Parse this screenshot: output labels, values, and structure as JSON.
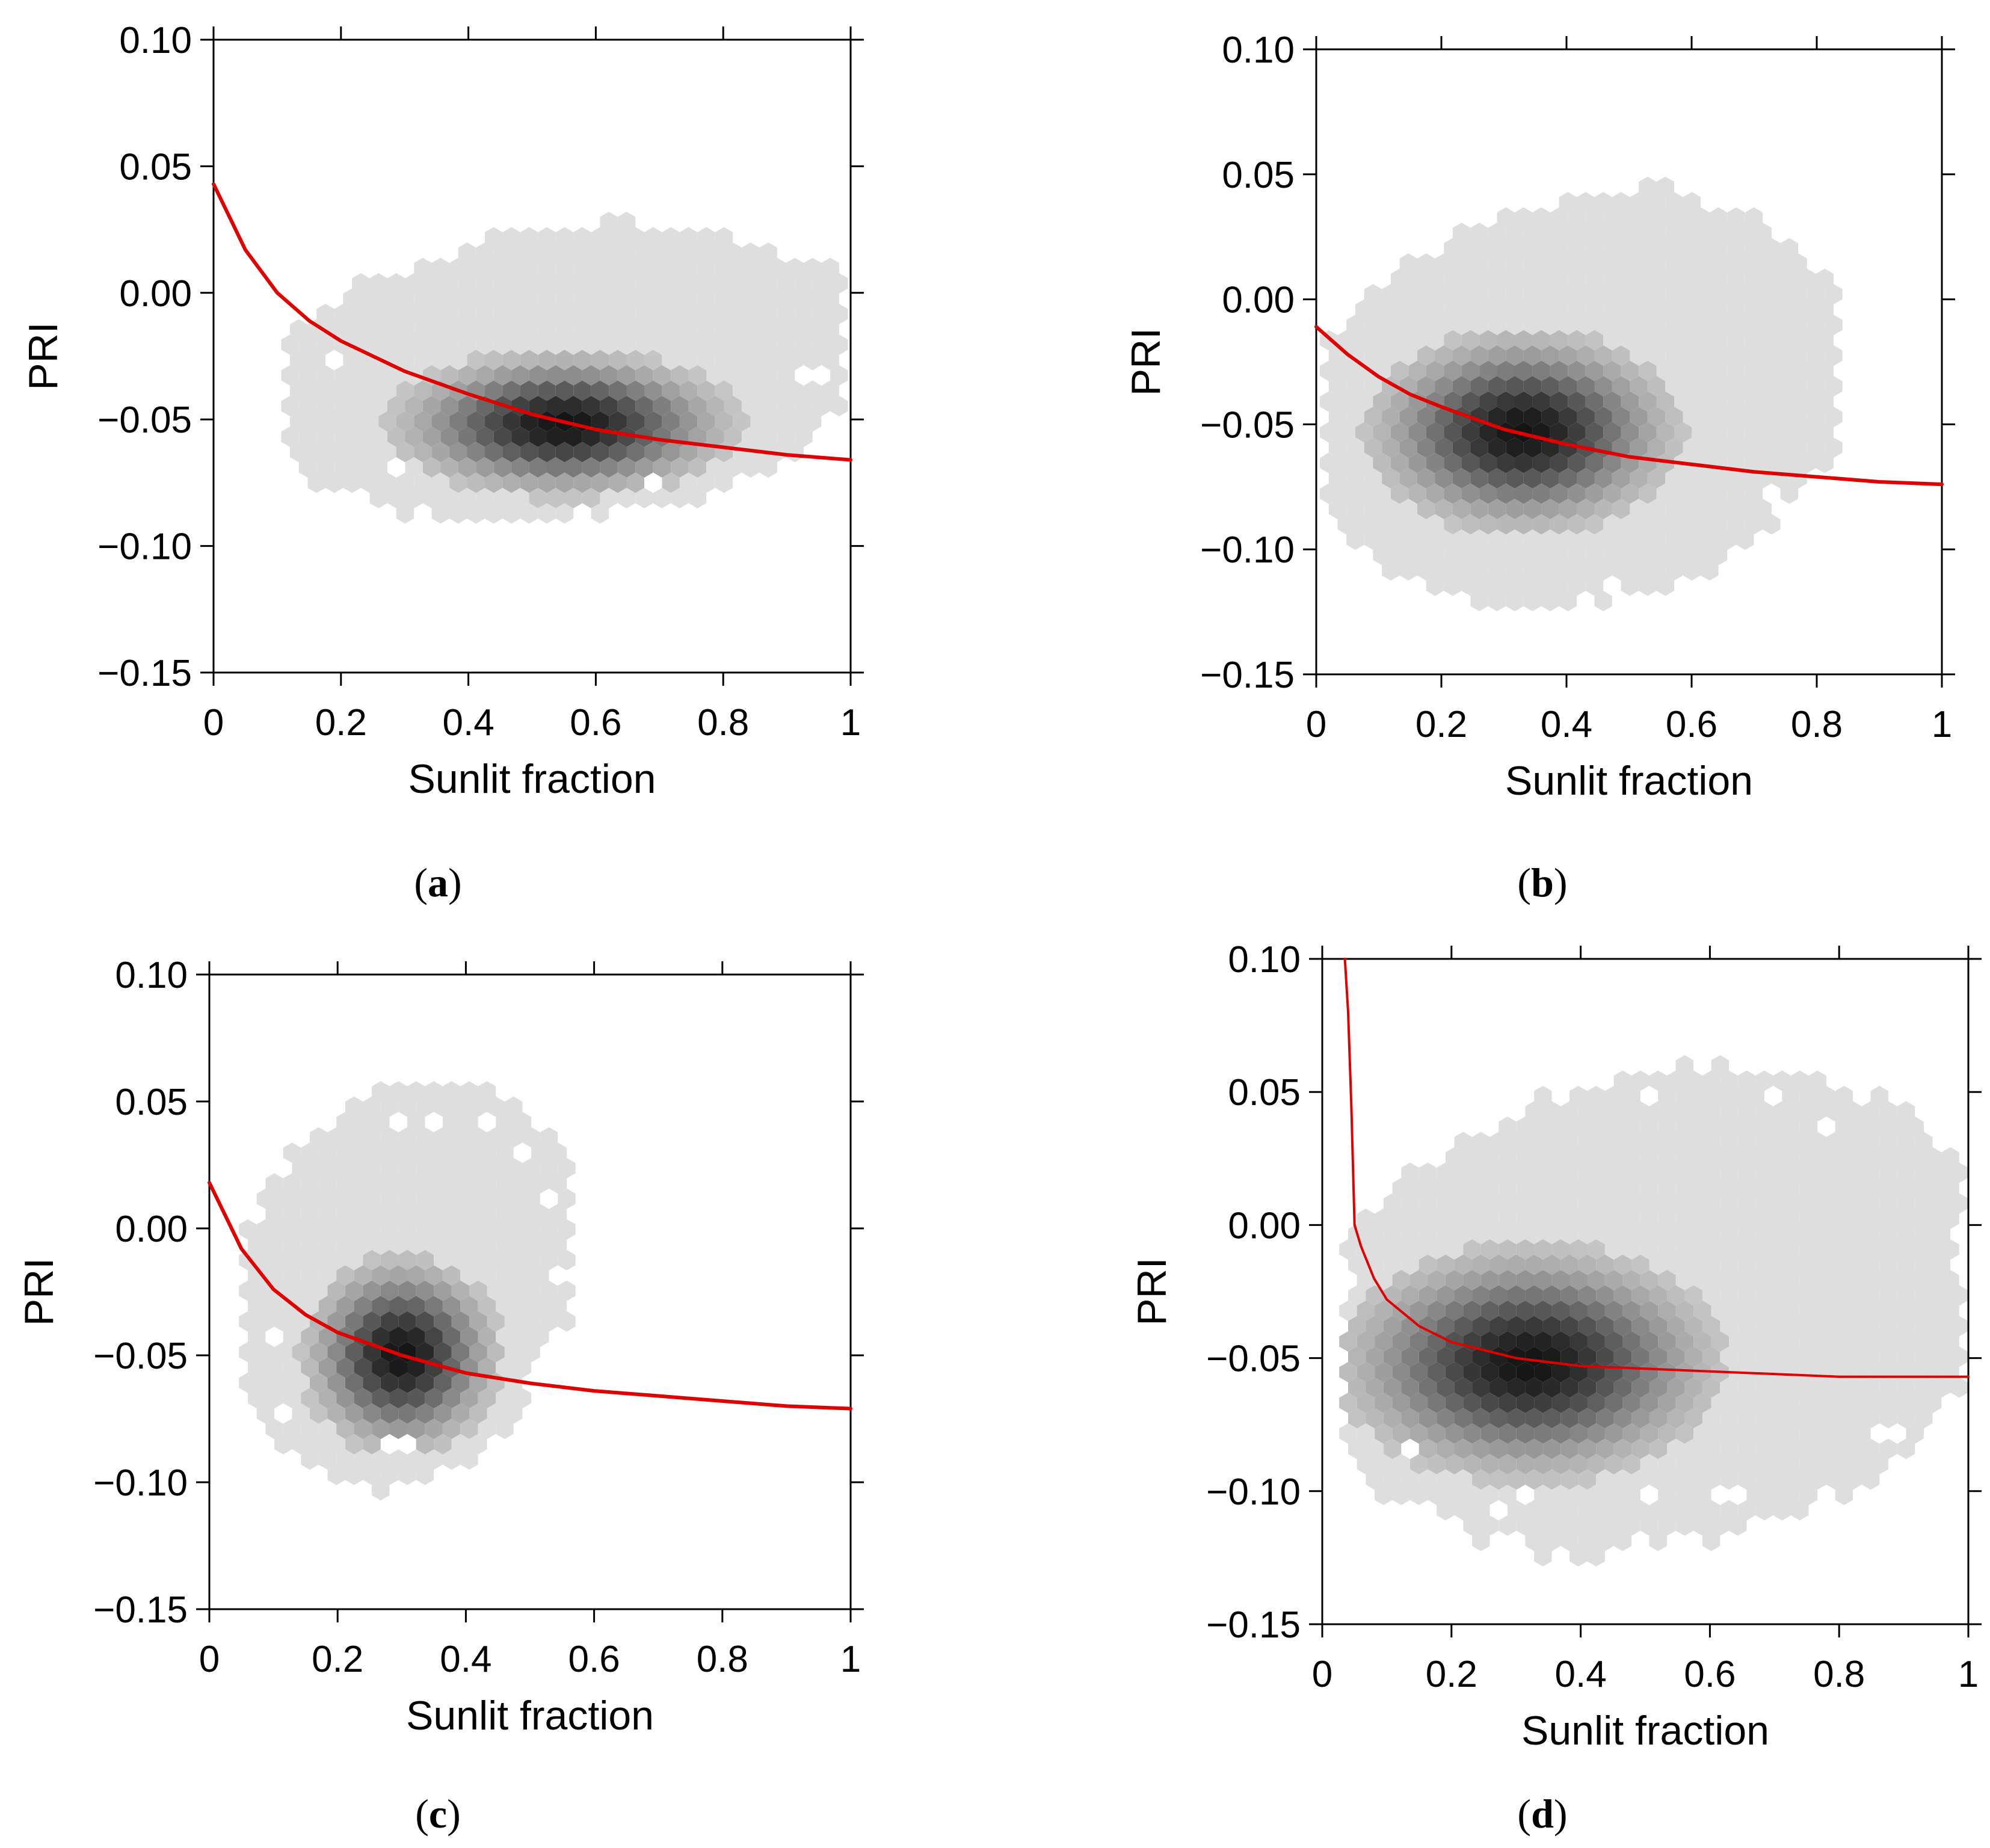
{
  "colors": {
    "fit_line": "#e00000",
    "axis": "#000000",
    "density_low": "#dcdcdc",
    "density_high": "#141414"
  },
  "chart_data": [
    {
      "panel": "a",
      "type": "hexbin-scatter",
      "caption": {
        "open": "(",
        "letter": "a",
        "close": ")"
      },
      "xlabel": "Sunlit fraction",
      "ylabel": "PRI",
      "xlim": [
        0,
        1
      ],
      "ylim": [
        -0.15,
        0.1
      ],
      "xticks": [
        "0",
        "0.2",
        "0.4",
        "0.6",
        "0.8",
        "1"
      ],
      "yticks": [
        "0.10",
        "0.05",
        "0.00",
        "−0.05",
        "−0.10",
        "−0.15"
      ],
      "density": {
        "x_range": [
          0.12,
          1.0
        ],
        "y_range": [
          -0.092,
          0.028
        ],
        "peak": {
          "x": 0.55,
          "y": -0.052
        }
      },
      "fit": {
        "x": [
          0,
          0.05,
          0.1,
          0.15,
          0.2,
          0.3,
          0.4,
          0.5,
          0.6,
          0.7,
          0.8,
          0.9,
          1.0
        ],
        "y": [
          0.043,
          0.017,
          0.0,
          -0.011,
          -0.019,
          -0.031,
          -0.04,
          -0.048,
          -0.054,
          -0.058,
          -0.061,
          -0.064,
          -0.066
        ]
      }
    },
    {
      "panel": "b",
      "type": "hexbin-scatter",
      "caption": {
        "open": "(",
        "letter": "b",
        "close": ")"
      },
      "xlabel": "Sunlit fraction",
      "ylabel": "PRI",
      "xlim": [
        0,
        1
      ],
      "ylim": [
        -0.15,
        0.1
      ],
      "xticks": [
        "0",
        "0.2",
        "0.4",
        "0.6",
        "0.8",
        "1"
      ],
      "yticks": [
        "0.10",
        "0.05",
        "0.00",
        "−0.05",
        "−0.10",
        "−0.15"
      ],
      "density": {
        "x_range": [
          0.02,
          0.83
        ],
        "y_range": [
          -0.125,
          0.045
        ],
        "peak": {
          "x": 0.33,
          "y": -0.053
        }
      },
      "fit": {
        "x": [
          0,
          0.05,
          0.1,
          0.15,
          0.2,
          0.3,
          0.4,
          0.5,
          0.6,
          0.7,
          0.8,
          0.9,
          1.0
        ],
        "y": [
          -0.011,
          -0.022,
          -0.031,
          -0.038,
          -0.043,
          -0.052,
          -0.058,
          -0.063,
          -0.066,
          -0.069,
          -0.071,
          -0.073,
          -0.074
        ]
      }
    },
    {
      "panel": "c",
      "type": "hexbin-scatter",
      "caption": {
        "open": "(",
        "letter": "c",
        "close": ")"
      },
      "xlabel": "Sunlit fraction",
      "ylabel": "PRI",
      "xlim": [
        0,
        1
      ],
      "ylim": [
        -0.15,
        0.1
      ],
      "xticks": [
        "0",
        "0.2",
        "0.4",
        "0.6",
        "0.8",
        "1"
      ],
      "yticks": [
        "0.10",
        "0.05",
        "0.00",
        "−0.05",
        "−0.10",
        "−0.15"
      ],
      "density": {
        "x_range": [
          0.06,
          0.56
        ],
        "y_range": [
          -0.104,
          0.06
        ],
        "peak": {
          "x": 0.3,
          "y": -0.05
        }
      },
      "fit": {
        "x": [
          0,
          0.05,
          0.1,
          0.15,
          0.2,
          0.3,
          0.4,
          0.5,
          0.6,
          0.7,
          0.8,
          0.9,
          1.0
        ],
        "y": [
          0.018,
          -0.008,
          -0.024,
          -0.034,
          -0.041,
          -0.05,
          -0.057,
          -0.061,
          -0.064,
          -0.066,
          -0.068,
          -0.07,
          -0.071
        ]
      }
    },
    {
      "panel": "d",
      "type": "hexbin-scatter",
      "caption": {
        "open": "(",
        "letter": "d",
        "close": ")"
      },
      "xlabel": "Sunlit fraction",
      "ylabel": "PRI",
      "xlim": [
        0,
        1
      ],
      "ylim": [
        -0.15,
        0.1
      ],
      "xticks": [
        "0",
        "0.2",
        "0.4",
        "0.6",
        "0.8",
        "1"
      ],
      "yticks": [
        "0.10",
        "0.05",
        "0.00",
        "−0.05",
        "−0.10",
        "−0.15"
      ],
      "density": {
        "x_range": [
          0.04,
          1.0
        ],
        "y_range": [
          -0.125,
          0.06
        ],
        "peak": {
          "x": 0.32,
          "y": -0.052
        }
      },
      "fit": {
        "x": [
          0.035,
          0.04,
          0.045,
          0.05,
          0.06,
          0.08,
          0.1,
          0.15,
          0.2,
          0.3,
          0.4,
          0.5,
          0.6,
          0.7,
          0.8,
          0.9,
          1.0
        ],
        "y": [
          0.1,
          0.08,
          0.045,
          0.0,
          -0.008,
          -0.02,
          -0.028,
          -0.038,
          -0.044,
          -0.05,
          -0.053,
          -0.054,
          -0.055,
          -0.056,
          -0.057,
          -0.057,
          -0.057
        ]
      }
    }
  ]
}
